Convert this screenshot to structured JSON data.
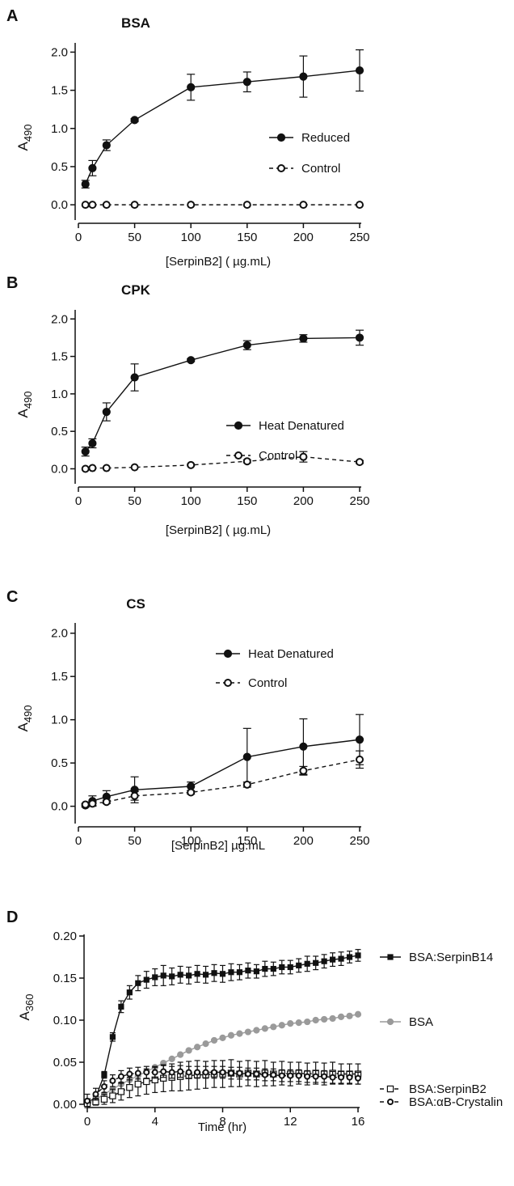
{
  "chart_data": [
    {
      "type": "line",
      "panel": "A",
      "title": "BSA",
      "xlabel": "[SerpinB2] (   µg.mL)",
      "ylabel": "A",
      "ylabel_sub": "490",
      "xlim": [
        0,
        250
      ],
      "ylim": [
        -0.2,
        2.1
      ],
      "xticks": [
        "0",
        "50",
        "100",
        "150",
        "200",
        "250"
      ],
      "yticks": [
        "0.0",
        "0.5",
        "1.0",
        "1.5",
        "2.0"
      ],
      "series": [
        {
          "name": "Reduced",
          "marker": "filled-circle",
          "line": "solid",
          "x": [
            6.25,
            12.5,
            25,
            50,
            100,
            150,
            200,
            250
          ],
          "y": [
            0.27,
            0.48,
            0.78,
            1.11,
            1.54,
            1.61,
            1.68,
            1.76
          ],
          "err": [
            0.05,
            0.1,
            0.07,
            0.02,
            0.17,
            0.13,
            0.27,
            0.27
          ]
        },
        {
          "name": "Control",
          "marker": "open-circle",
          "line": "dashed",
          "x": [
            6.25,
            12.5,
            25,
            50,
            100,
            150,
            200,
            250
          ],
          "y": [
            0,
            0,
            0,
            0,
            0,
            0,
            0,
            0
          ],
          "err": [
            0,
            0,
            0,
            0,
            0,
            0,
            0,
            0
          ]
        }
      ]
    },
    {
      "type": "line",
      "panel": "B",
      "title": "CPK",
      "xlabel": "[SerpinB2] (   µg.mL)",
      "ylabel": "A",
      "ylabel_sub": "490",
      "xlim": [
        0,
        250
      ],
      "ylim": [
        -0.2,
        2.1
      ],
      "xticks": [
        "0",
        "50",
        "100",
        "150",
        "200",
        "250"
      ],
      "yticks": [
        "0.0",
        "0.5",
        "1.0",
        "1.5",
        "2.0"
      ],
      "series": [
        {
          "name": "Heat Denatured",
          "marker": "filled-circle",
          "line": "solid",
          "x": [
            6.25,
            12.5,
            25,
            50,
            100,
            150,
            200,
            250
          ],
          "y": [
            0.23,
            0.34,
            0.76,
            1.22,
            1.45,
            1.65,
            1.74,
            1.75
          ],
          "err": [
            0.06,
            0.06,
            0.12,
            0.18,
            0.02,
            0.06,
            0.05,
            0.1
          ]
        },
        {
          "name": "Control",
          "marker": "open-circle",
          "line": "dashed",
          "x": [
            6.25,
            12.5,
            25,
            50,
            100,
            150,
            200,
            250
          ],
          "y": [
            0,
            0.01,
            0.01,
            0.02,
            0.05,
            0.1,
            0.16,
            0.09
          ],
          "err": [
            0,
            0,
            0,
            0,
            0.01,
            0.02,
            0.07,
            0.02
          ]
        }
      ]
    },
    {
      "type": "line",
      "panel": "C",
      "title": "CS",
      "xlabel": "[SerpinB2]    µg.mL",
      "ylabel": "A",
      "ylabel_sub": "490",
      "xlim": [
        0,
        250
      ],
      "ylim": [
        -0.2,
        2.1
      ],
      "xticks": [
        "0",
        "50",
        "100",
        "150",
        "200",
        "250"
      ],
      "yticks": [
        "0.0",
        "0.5",
        "1.0",
        "1.5",
        "2.0"
      ],
      "series": [
        {
          "name": "Heat Denatured",
          "marker": "filled-circle",
          "line": "solid",
          "x": [
            6.25,
            12.5,
            25,
            50,
            100,
            150,
            200,
            250
          ],
          "y": [
            0.01,
            0.06,
            0.11,
            0.19,
            0.23,
            0.57,
            0.69,
            0.77
          ],
          "err": [
            0.02,
            0.06,
            0.07,
            0.15,
            0.05,
            0.33,
            0.32,
            0.29
          ]
        },
        {
          "name": "Control",
          "marker": "open-circle",
          "line": "dashed",
          "x": [
            6.25,
            12.5,
            25,
            50,
            100,
            150,
            200,
            250
          ],
          "y": [
            0.02,
            0.03,
            0.05,
            0.12,
            0.16,
            0.25,
            0.41,
            0.54
          ],
          "err": [
            0.01,
            0.02,
            0.02,
            0.05,
            0.02,
            0.03,
            0.05,
            0.1
          ]
        }
      ]
    },
    {
      "type": "line",
      "panel": "D",
      "title": "",
      "xlabel": "Time (hr)",
      "ylabel": "A",
      "ylabel_sub": "360",
      "xlim": [
        0,
        16
      ],
      "ylim": [
        0,
        0.2
      ],
      "xticks": [
        "0",
        "4",
        "8",
        "12",
        "16"
      ],
      "yticks": [
        "0.00",
        "0.05",
        "0.10",
        "0.15",
        "0.20"
      ],
      "series": [
        {
          "name": "BSA:SerpinB14",
          "marker": "filled-square",
          "color": "#111111",
          "line": "solid",
          "x": [
            0,
            0.5,
            1,
            1.5,
            2,
            2.5,
            3,
            3.5,
            4,
            4.5,
            5,
            5.5,
            6,
            6.5,
            7,
            7.5,
            8,
            8.5,
            9,
            9.5,
            10,
            10.5,
            11,
            11.5,
            12,
            12.5,
            13,
            13.5,
            14,
            14.5,
            15,
            15.5,
            16
          ],
          "y": [
            0.002,
            0.008,
            0.035,
            0.08,
            0.116,
            0.133,
            0.144,
            0.148,
            0.151,
            0.153,
            0.152,
            0.154,
            0.153,
            0.155,
            0.154,
            0.156,
            0.155,
            0.157,
            0.157,
            0.159,
            0.158,
            0.161,
            0.161,
            0.163,
            0.163,
            0.165,
            0.167,
            0.168,
            0.17,
            0.172,
            0.173,
            0.175,
            0.177
          ],
          "err": [
            0.002,
            0.003,
            0.004,
            0.005,
            0.007,
            0.008,
            0.009,
            0.01,
            0.01,
            0.012,
            0.01,
            0.01,
            0.01,
            0.01,
            0.01,
            0.01,
            0.01,
            0.01,
            0.009,
            0.009,
            0.008,
            0.009,
            0.008,
            0.008,
            0.008,
            0.008,
            0.009,
            0.008,
            0.008,
            0.008,
            0.008,
            0.007,
            0.007
          ]
        },
        {
          "name": "BSA",
          "marker": "filled-circle",
          "color": "#9a9a9a",
          "line": "solid",
          "x": [
            0,
            0.5,
            1,
            1.5,
            2,
            2.5,
            3,
            3.5,
            4,
            4.5,
            5,
            5.5,
            6,
            6.5,
            7,
            7.5,
            8,
            8.5,
            9,
            9.5,
            10,
            10.5,
            11,
            11.5,
            12,
            12.5,
            13,
            13.5,
            14,
            14.5,
            15,
            15.5,
            16
          ],
          "y": [
            0.002,
            0.006,
            0.012,
            0.018,
            0.024,
            0.029,
            0.034,
            0.039,
            0.044,
            0.049,
            0.054,
            0.059,
            0.064,
            0.068,
            0.072,
            0.076,
            0.079,
            0.082,
            0.084,
            0.086,
            0.088,
            0.09,
            0.092,
            0.094,
            0.096,
            0.097,
            0.098,
            0.1,
            0.101,
            0.102,
            0.104,
            0.105,
            0.107
          ]
        },
        {
          "name": "BSA:SerpinB2",
          "marker": "open-square",
          "color": "#111111",
          "line": "dashed",
          "x": [
            0,
            0.5,
            1,
            1.5,
            2,
            2.5,
            3,
            3.5,
            4,
            4.5,
            5,
            5.5,
            6,
            6.5,
            7,
            7.5,
            8,
            8.5,
            9,
            9.5,
            10,
            10.5,
            11,
            11.5,
            12,
            12.5,
            13,
            13.5,
            14,
            14.5,
            15,
            15.5,
            16
          ],
          "y": [
            0.001,
            0.003,
            0.006,
            0.01,
            0.015,
            0.02,
            0.024,
            0.027,
            0.029,
            0.031,
            0.032,
            0.033,
            0.034,
            0.035,
            0.035,
            0.036,
            0.036,
            0.037,
            0.036,
            0.037,
            0.036,
            0.037,
            0.036,
            0.037,
            0.036,
            0.037,
            0.036,
            0.037,
            0.036,
            0.037,
            0.036,
            0.036,
            0.036
          ],
          "err": [
            0.002,
            0.004,
            0.006,
            0.008,
            0.01,
            0.012,
            0.014,
            0.015,
            0.015,
            0.016,
            0.016,
            0.017,
            0.017,
            0.017,
            0.016,
            0.016,
            0.016,
            0.016,
            0.015,
            0.015,
            0.015,
            0.015,
            0.014,
            0.014,
            0.014,
            0.013,
            0.013,
            0.013,
            0.013,
            0.013,
            0.012,
            0.012,
            0.012
          ]
        },
        {
          "name": "BSA:αB-Crystalin",
          "marker": "open-circle",
          "color": "#111111",
          "line": "dashed",
          "x": [
            0,
            0.5,
            1,
            1.5,
            2,
            2.5,
            3,
            3.5,
            4,
            4.5,
            5,
            5.5,
            6,
            6.5,
            7,
            7.5,
            8,
            8.5,
            9,
            9.5,
            10,
            10.5,
            11,
            11.5,
            12,
            12.5,
            13,
            13.5,
            14,
            14.5,
            15,
            15.5,
            16
          ],
          "y": [
            0.004,
            0.012,
            0.021,
            0.028,
            0.033,
            0.036,
            0.037,
            0.038,
            0.038,
            0.039,
            0.038,
            0.039,
            0.038,
            0.038,
            0.038,
            0.038,
            0.038,
            0.037,
            0.037,
            0.036,
            0.036,
            0.035,
            0.035,
            0.034,
            0.034,
            0.034,
            0.033,
            0.033,
            0.033,
            0.032,
            0.032,
            0.032,
            0.031
          ],
          "err": [
            0.008,
            0.007,
            0.007,
            0.007,
            0.007,
            0.007,
            0.007,
            0.007,
            0.007,
            0.007,
            0.007,
            0.007,
            0.007,
            0.007,
            0.007,
            0.007,
            0.007,
            0.007,
            0.007,
            0.007,
            0.007,
            0.007,
            0.007,
            0.007,
            0.007,
            0.007,
            0.007,
            0.007,
            0.007,
            0.007,
            0.007,
            0.007,
            0.007
          ]
        }
      ]
    }
  ]
}
